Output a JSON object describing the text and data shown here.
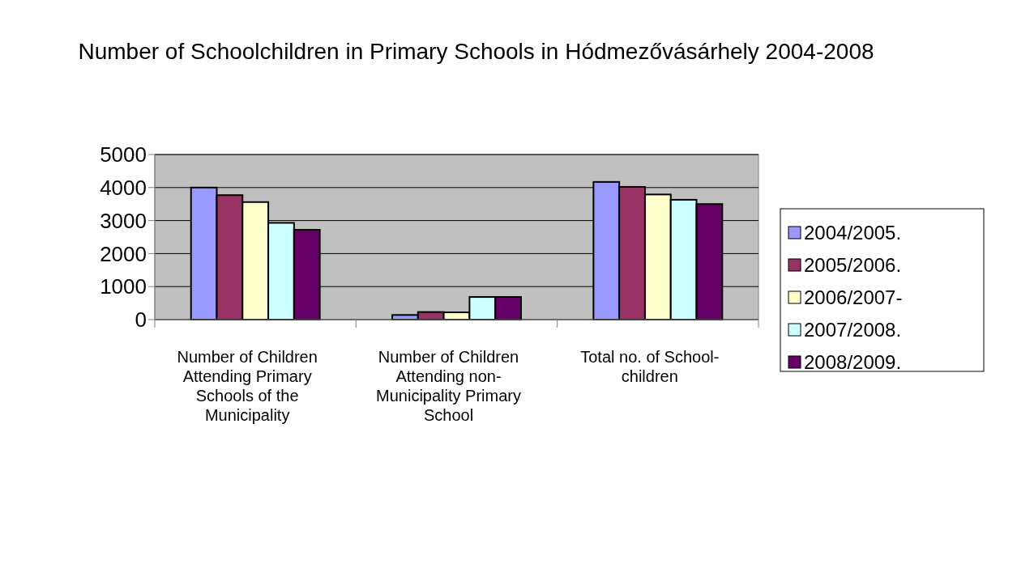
{
  "chart_data": {
    "type": "bar",
    "title": "Number of Schoolchildren in Primary Schools in Hódmezővásárhely 2004-2008",
    "categories": [
      "Number of Children Attending Primary Schools of the Municipality",
      "Number of Children Attending non-Municipality Primary School",
      "Total no. of School-children"
    ],
    "series": [
      {
        "name": "2004/2005.",
        "color": "#9999ff",
        "values": [
          4000,
          140,
          4170
        ]
      },
      {
        "name": "2005/2006.",
        "color": "#993366",
        "values": [
          3770,
          230,
          4020
        ]
      },
      {
        "name": "2006/2007-",
        "color": "#ffffcc",
        "values": [
          3560,
          220,
          3790
        ]
      },
      {
        "name": "2007/2008.",
        "color": "#ccffff",
        "values": [
          2930,
          685,
          3630
        ]
      },
      {
        "name": "2008/2009.",
        "color": "#660066",
        "values": [
          2720,
          685,
          3500
        ]
      }
    ],
    "ylim": [
      0,
      5000
    ],
    "yticks": [
      0,
      1000,
      2000,
      3000,
      4000,
      5000
    ],
    "grid": "y",
    "legend": "right"
  }
}
